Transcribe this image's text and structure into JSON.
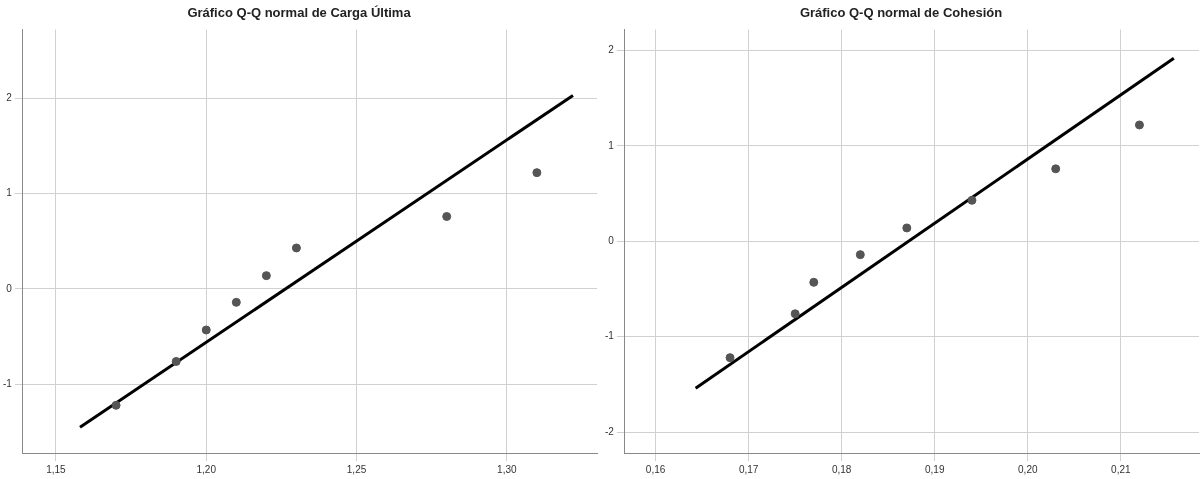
{
  "chart_data": [
    {
      "type": "scatter",
      "title": "Gráfico Q-Q normal de Carga Última",
      "xlim": [
        1.139,
        1.33
      ],
      "xticks": [
        {
          "value": 1.15,
          "label": "1,15"
        },
        {
          "value": 1.2,
          "label": "1,20"
        },
        {
          "value": 1.25,
          "label": "1,25"
        },
        {
          "value": 1.3,
          "label": "1,30"
        }
      ],
      "ylim": [
        -1.72,
        2.72
      ],
      "yticks": [
        -1,
        0,
        1,
        2
      ],
      "grid": true,
      "legend": false,
      "series": [
        {
          "color": "#555555",
          "marker": "circle",
          "x": [
            1.17,
            1.19,
            1.2,
            1.21,
            1.22,
            1.23,
            1.28,
            1.31
          ],
          "values": [
            -1.22,
            -0.76,
            -0.43,
            -0.14,
            0.14,
            0.43,
            0.76,
            1.22
          ]
        },
        {
          "type": "line",
          "marker": "none",
          "color": "#000000",
          "x": [
            1.158,
            1.322
          ],
          "values": [
            -1.45,
            2.03
          ]
        }
      ]
    },
    {
      "type": "scatter",
      "title": "Gráfico Q-Q normal de Cohesión",
      "xlim": [
        0.1567,
        0.2184
      ],
      "xticks": [
        {
          "value": 0.16,
          "label": "0,16"
        },
        {
          "value": 0.17,
          "label": "0,17"
        },
        {
          "value": 0.18,
          "label": "0,18"
        },
        {
          "value": 0.19,
          "label": "0,19"
        },
        {
          "value": 0.2,
          "label": "0,20"
        },
        {
          "value": 0.21,
          "label": "0,21"
        }
      ],
      "ylim": [
        -2.22,
        2.22
      ],
      "yticks": [
        -2,
        -1,
        0,
        1,
        2
      ],
      "grid": true,
      "legend": false,
      "series": [
        {
          "color": "#555555",
          "marker": "circle",
          "x": [
            0.168,
            0.175,
            0.177,
            0.182,
            0.187,
            0.194,
            0.203,
            0.212
          ],
          "values": [
            -1.22,
            -0.76,
            -0.43,
            -0.14,
            0.14,
            0.43,
            0.76,
            1.22
          ]
        },
        {
          "type": "line",
          "marker": "none",
          "color": "#000000",
          "x": [
            0.1643,
            0.2157
          ],
          "values": [
            -1.54,
            1.92
          ]
        }
      ]
    }
  ]
}
